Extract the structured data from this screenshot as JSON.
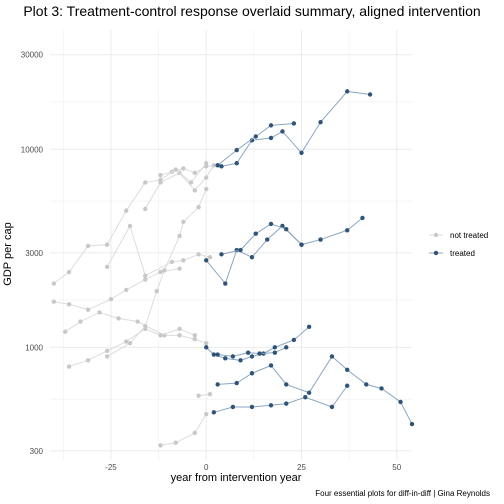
{
  "chart_data": {
    "type": "line",
    "title": "Plot 3: Treatment-control response overlaid summary, aligned intervention",
    "xlabel": "year from intervention year",
    "ylabel": "GDP per cap",
    "caption": "Four essential plots for diff-in-diff | Gina Reynolds",
    "x_scale": "linear",
    "y_scale": "log10",
    "xlim": [
      -41,
      54
    ],
    "ylim": [
      270,
      40000
    ],
    "x_ticks": [
      -25,
      0,
      25,
      50
    ],
    "x_tick_labels": [
      "-25",
      "0",
      "25",
      "50"
    ],
    "y_ticks": [
      300,
      1000,
      3000,
      10000,
      30000
    ],
    "y_tick_labels": [
      "300",
      "1000",
      "3000",
      "10000",
      "30000"
    ],
    "grid": true,
    "legend_position": "right",
    "colors": {
      "not treated": "#c8c8c8",
      "treated": "#2f5478",
      "treated_line": "#8ba6c1",
      "not_treated_line": "#dcdcdc",
      "grid": "#ebebeb"
    },
    "legend": [
      "not treated",
      "treated"
    ],
    "series": [
      {
        "group": "not treated",
        "points": [
          [
            -12,
            7400
          ],
          [
            -9,
            7700
          ],
          [
            -6,
            8000
          ],
          [
            -3,
            7600
          ],
          [
            0,
            8200
          ],
          [
            3,
            8300
          ]
        ]
      },
      {
        "group": "not treated",
        "points": [
          [
            -16,
            5000
          ],
          [
            -12,
            6800
          ],
          [
            -7,
            7600
          ],
          [
            -3,
            6200
          ],
          [
            0,
            7200
          ],
          [
            2,
            8300
          ]
        ]
      },
      {
        "group": "not treated",
        "points": [
          [
            -26,
            2550
          ],
          [
            -20,
            4100
          ],
          [
            -16,
            2300
          ],
          [
            -9,
            2700
          ],
          [
            -6,
            2750
          ],
          [
            -2,
            2950
          ],
          [
            1,
            2850
          ]
        ]
      },
      {
        "group": "not treated",
        "points": [
          [
            -40,
            2100
          ],
          [
            -36,
            2400
          ],
          [
            -31,
            3250
          ],
          [
            -26,
            3300
          ],
          [
            -21,
            4900
          ],
          [
            -16,
            6800
          ],
          [
            -12,
            7000
          ],
          [
            -8,
            7900
          ],
          [
            -4,
            6800
          ],
          [
            0,
            8500
          ]
        ]
      },
      {
        "group": "not treated",
        "points": [
          [
            -40,
            1700
          ],
          [
            -36,
            1650
          ],
          [
            -31,
            1550
          ],
          [
            -25,
            1750
          ],
          [
            -21,
            1950
          ],
          [
            -16,
            2200
          ],
          [
            -12,
            2400
          ],
          [
            -7,
            2500
          ]
        ]
      },
      {
        "group": "not treated",
        "points": [
          [
            -37,
            1200
          ],
          [
            -33,
            1350
          ],
          [
            -28,
            1500
          ],
          [
            -23,
            1400
          ],
          [
            -18,
            1350
          ],
          [
            -11,
            1150
          ],
          [
            -7,
            1150
          ],
          [
            -3,
            1100
          ],
          [
            0,
            1050
          ]
        ]
      },
      {
        "group": "not treated",
        "points": [
          [
            -36,
            800
          ],
          [
            -31,
            860
          ],
          [
            -26,
            960
          ],
          [
            -21,
            1070
          ],
          [
            -16,
            1240
          ],
          [
            -12,
            1150
          ],
          [
            -7,
            1240
          ],
          [
            -3,
            1150
          ]
        ]
      },
      {
        "group": "not treated",
        "points": [
          [
            -12,
            320
          ],
          [
            -8,
            330
          ],
          [
            -3,
            370
          ],
          [
            0,
            460
          ]
        ]
      },
      {
        "group": "not treated",
        "points": [
          [
            -2,
            570
          ],
          [
            1,
            580
          ]
        ]
      },
      {
        "group": "not treated",
        "points": [
          [
            -26,
            900
          ],
          [
            -20,
            1050
          ],
          [
            -16,
            1280
          ],
          [
            -13,
            1920
          ],
          [
            -11,
            2450
          ],
          [
            -7,
            3650
          ],
          [
            -6,
            4300
          ],
          [
            -2,
            5100
          ],
          [
            0,
            6300
          ]
        ]
      },
      {
        "group": "treated",
        "points": [
          [
            4,
            8200
          ],
          [
            8,
            8500
          ],
          [
            12,
            11100
          ],
          [
            17,
            11400
          ],
          [
            20,
            12300
          ],
          [
            25,
            9600
          ],
          [
            30,
            13700
          ],
          [
            37,
            19600
          ],
          [
            43,
            18900
          ]
        ]
      },
      {
        "group": "treated",
        "points": [
          [
            3,
            8300
          ],
          [
            8,
            9900
          ],
          [
            13,
            11600
          ],
          [
            17,
            13200
          ],
          [
            23,
            13500
          ]
        ]
      },
      {
        "group": "treated",
        "points": [
          [
            0,
            2750
          ],
          [
            5,
            2100
          ],
          [
            8,
            3100
          ],
          [
            12,
            2850
          ],
          [
            16,
            3500
          ],
          [
            20,
            4100
          ],
          [
            25,
            3300
          ],
          [
            30,
            3500
          ],
          [
            37,
            3900
          ],
          [
            41,
            4500
          ]
        ]
      },
      {
        "group": "treated",
        "points": [
          [
            4,
            2950
          ],
          [
            9,
            3100
          ],
          [
            13,
            3750
          ],
          [
            17,
            4200
          ],
          [
            21,
            3950
          ],
          [
            25,
            3300
          ]
        ]
      },
      {
        "group": "treated",
        "points": [
          [
            0,
            1000
          ],
          [
            2,
            920
          ],
          [
            5,
            880
          ],
          [
            9,
            860
          ],
          [
            12,
            900
          ],
          [
            15,
            930
          ],
          [
            18,
            1000
          ],
          [
            23,
            1090
          ],
          [
            27,
            1270
          ]
        ]
      },
      {
        "group": "treated",
        "points": [
          [
            3,
            920
          ],
          [
            7,
            900
          ],
          [
            11,
            940
          ],
          [
            14,
            930
          ],
          [
            18,
            940
          ],
          [
            21,
            1000
          ]
        ]
      },
      {
        "group": "treated",
        "points": [
          [
            3,
            650
          ],
          [
            8,
            660
          ],
          [
            12,
            740
          ],
          [
            17,
            810
          ],
          [
            21,
            650
          ],
          [
            27,
            590
          ],
          [
            33,
            900
          ],
          [
            37,
            770
          ],
          [
            42,
            650
          ],
          [
            46,
            620
          ],
          [
            51,
            530
          ],
          [
            54,
            410
          ]
        ]
      },
      {
        "group": "treated",
        "points": [
          [
            2,
            470
          ],
          [
            7,
            500
          ],
          [
            12,
            500
          ],
          [
            17,
            510
          ],
          [
            21,
            520
          ],
          [
            26,
            560
          ],
          [
            33,
            500
          ],
          [
            37,
            640
          ]
        ]
      }
    ]
  }
}
